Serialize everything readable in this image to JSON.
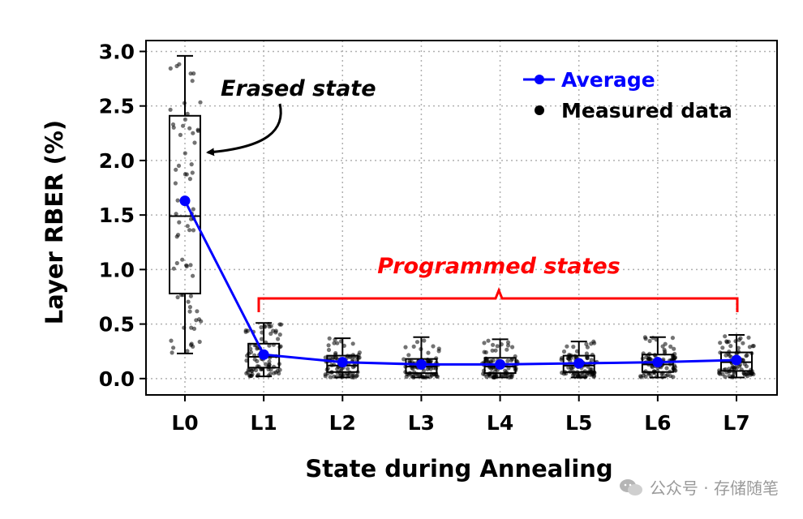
{
  "chart_data": {
    "type": "box",
    "xlabel": "State during Annealing",
    "ylabel": "Layer RBER (%)",
    "ylim": [
      -0.15,
      3.1
    ],
    "yticks": [
      "0.0",
      "0.5",
      "1.0",
      "1.5",
      "2.0",
      "2.5",
      "3.0"
    ],
    "categories": [
      "L0",
      "L1",
      "L2",
      "L3",
      "L4",
      "L5",
      "L6",
      "L7"
    ],
    "grid": true,
    "legend_position": "top-right",
    "legend": [
      {
        "label": "Average",
        "color": "#0000ff",
        "marker": "line-circle"
      },
      {
        "label": "Measured data",
        "color": "#000000",
        "marker": "circle"
      }
    ],
    "series": [
      {
        "name": "Average",
        "color": "#0000ff",
        "values": [
          1.63,
          0.22,
          0.15,
          0.13,
          0.13,
          0.14,
          0.15,
          0.17
        ]
      }
    ],
    "boxes": [
      {
        "category": "L0",
        "min": 0.23,
        "q1": 0.78,
        "median": 1.49,
        "q3": 2.41,
        "max": 2.96
      },
      {
        "category": "L1",
        "min": 0.02,
        "q1": 0.1,
        "median": 0.2,
        "q3": 0.32,
        "max": 0.51
      },
      {
        "category": "L2",
        "min": 0.01,
        "q1": 0.06,
        "median": 0.12,
        "q3": 0.21,
        "max": 0.37
      },
      {
        "category": "L3",
        "min": 0.01,
        "q1": 0.05,
        "median": 0.11,
        "q3": 0.18,
        "max": 0.38
      },
      {
        "category": "L4",
        "min": 0.01,
        "q1": 0.05,
        "median": 0.11,
        "q3": 0.19,
        "max": 0.36
      },
      {
        "category": "L5",
        "min": 0.01,
        "q1": 0.06,
        "median": 0.12,
        "q3": 0.21,
        "max": 0.34
      },
      {
        "category": "L6",
        "min": 0.01,
        "q1": 0.06,
        "median": 0.13,
        "q3": 0.22,
        "max": 0.38
      },
      {
        "category": "L7",
        "min": 0.01,
        "q1": 0.07,
        "median": 0.15,
        "q3": 0.24,
        "max": 0.4
      }
    ],
    "annotations": [
      {
        "text": "Erased state",
        "color": "#000000",
        "points_to": "L0"
      },
      {
        "text": "Programmed states",
        "color": "#ff0000",
        "spans": [
          "L1",
          "L7"
        ]
      }
    ]
  },
  "watermark": {
    "text": "公众号 · 存储随笔"
  }
}
